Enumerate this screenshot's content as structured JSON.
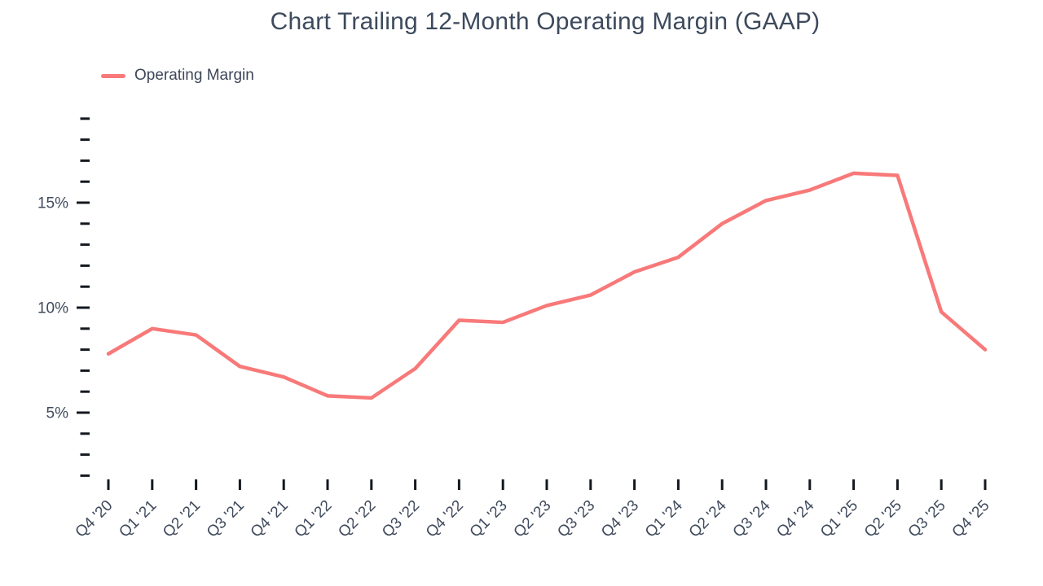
{
  "header": {
    "title": "Chart Trailing 12-Month Operating Margin (GAAP)"
  },
  "legend": {
    "items": [
      {
        "label": "Operating Margin",
        "color": "#f87979"
      }
    ]
  },
  "colors": {
    "accent": "#f87979",
    "axis_text": "#3f4a5c",
    "tick_mark": "#14181f",
    "title_text": "#3d4a5d",
    "background": "#ffffff"
  },
  "chart_data": {
    "type": "line",
    "title": "Chart Trailing 12-Month Operating Margin (GAAP)",
    "categories": [
      "Q4 '20",
      "Q1 '21",
      "Q2 '21",
      "Q3 '21",
      "Q4 '21",
      "Q1 '22",
      "Q2 '22",
      "Q3 '22",
      "Q4 '22",
      "Q1 '23",
      "Q2 '23",
      "Q3 '23",
      "Q4 '23",
      "Q1 '24",
      "Q2 '24",
      "Q3 '24",
      "Q4 '24",
      "Q1 '25",
      "Q2 '25",
      "Q3 '25",
      "Q4 '25"
    ],
    "series": [
      {
        "name": "Operating Margin",
        "color": "#f87979",
        "values": [
          7.8,
          9.0,
          8.7,
          7.2,
          6.7,
          5.8,
          5.7,
          7.1,
          9.4,
          9.3,
          10.1,
          10.6,
          11.7,
          12.4,
          14.0,
          15.1,
          15.6,
          16.4,
          16.3,
          9.8,
          8.0
        ]
      }
    ],
    "xlabel": "",
    "ylabel": "",
    "y_unit": "%",
    "y_axis": {
      "labeled_ticks": [
        "5%",
        "10%",
        "15%"
      ],
      "labeled_tick_values": [
        5,
        10,
        15
      ],
      "minor_tick_step": 1,
      "tick_min": 2,
      "tick_max": 19
    },
    "ylim": [
      2,
      19
    ],
    "grid": false,
    "legend_position": "top-left"
  }
}
